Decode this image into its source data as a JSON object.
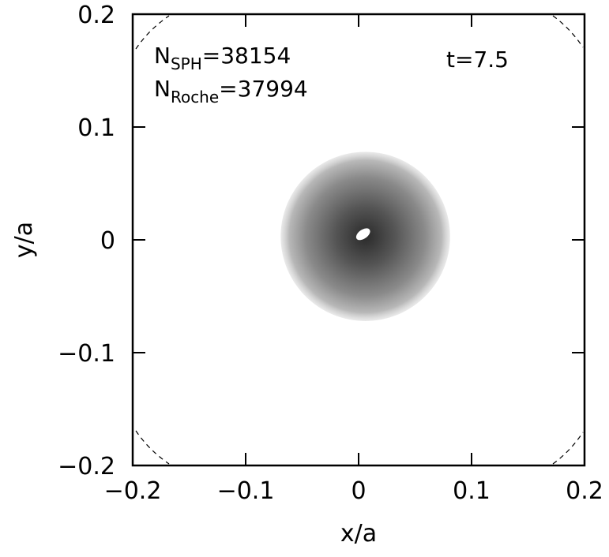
{
  "chart_data": {
    "type": "disk",
    "xlabel": "x/a",
    "ylabel": "y/a",
    "xlim": [
      -0.2,
      0.2
    ],
    "ylim": [
      -0.2,
      0.2
    ],
    "xticks": [
      {
        "value": -0.2,
        "label": "−0.2"
      },
      {
        "value": -0.1,
        "label": "−0.1"
      },
      0,
      0.1,
      0.2
    ],
    "yticks": [
      {
        "value": -0.2,
        "label": "−0.2"
      },
      {
        "value": -0.1,
        "label": "−0.1"
      },
      0,
      0.1,
      0.2
    ],
    "disk": {
      "center": [
        0.006,
        0.003
      ],
      "outer_radius": 0.075
    },
    "hole": {
      "center": [
        0.004,
        0.005
      ],
      "rx": 0.007,
      "ry": 0.004
    },
    "annotations": [
      {
        "symbol": "N",
        "subscript": "SPH",
        "relation": "=",
        "value": 38154
      },
      {
        "symbol": "N",
        "subscript": "Roche",
        "relation": "=",
        "value": 37994
      },
      {
        "symbol": "t",
        "relation": "=",
        "value": 7.5
      }
    ]
  }
}
